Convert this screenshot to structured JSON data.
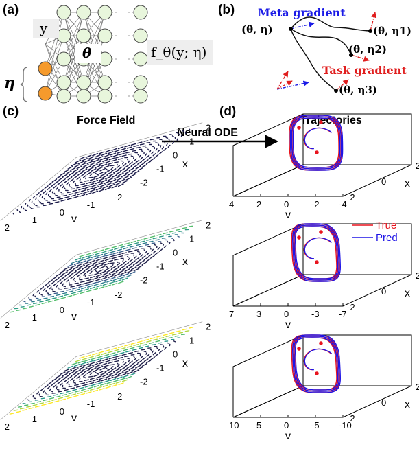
{
  "panel_labels": {
    "a": "(a)",
    "b": "(b)",
    "c": "(c)",
    "d": "(d)"
  },
  "network": {
    "input_label": "y",
    "param_label": "η",
    "hidden_label": "θ",
    "output_label": "f_θ(y; η)",
    "colors": {
      "node_fill": "#e8f6dc",
      "param_node_fill": "#f59a2c",
      "edge": "#777777"
    }
  },
  "meta": {
    "meta_gradient_label": "Meta gradient",
    "task_gradient_label": "Task gradient",
    "point_labels": [
      "(θ, η)",
      "(θ, η1)",
      "(θ, η2)",
      "(θ, η3)"
    ],
    "colors": {
      "meta": "#1a1ae6",
      "task": "#e01e1e"
    }
  },
  "force_field": {
    "title": "Force Field",
    "v_ticks": [
      "2",
      "1",
      "0",
      "-1",
      "-2"
    ],
    "x_ticks": [
      "2",
      "1",
      "0",
      "-1",
      "-2"
    ],
    "v_axis": "v",
    "x_axis": "x"
  },
  "arrow_label": "Neural ODE",
  "trajectories": {
    "title": "Trajectories",
    "x_axis": "x",
    "v_axis": "v",
    "legend": [
      {
        "name": "True",
        "color": "#e8141e"
      },
      {
        "name": "Pred",
        "color": "#1e14e6"
      }
    ],
    "v_ticks": [
      [
        "4",
        "2",
        "0",
        "-2",
        "-4"
      ],
      [
        "7",
        "3",
        "0",
        "-3",
        "-7"
      ],
      [
        "10",
        "5",
        "0",
        "-5",
        "-10"
      ]
    ],
    "x_ticks": [
      "2",
      "0",
      "-2"
    ]
  }
}
